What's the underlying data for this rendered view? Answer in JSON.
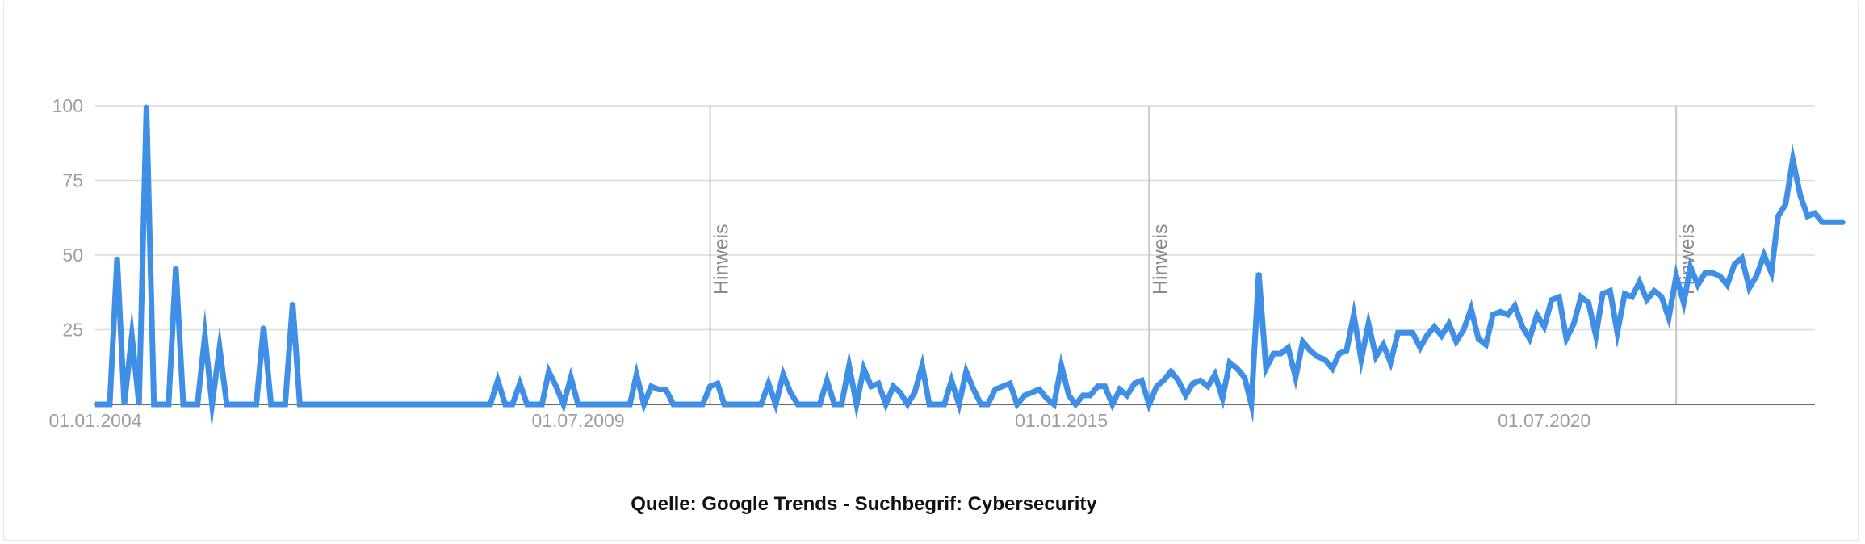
{
  "chart_data": {
    "type": "line",
    "title": "",
    "caption": "Quelle: Google Trends - Suchbegrif: Cybersecurity",
    "xlabel": "",
    "ylabel": "",
    "x_range": [
      "2004-01-01",
      "2023-08-01"
    ],
    "ylim": [
      0,
      100
    ],
    "y_ticks": [
      25,
      50,
      75,
      100
    ],
    "x_tick_labels": [
      {
        "date": "2004-01-01",
        "label": "01.01.2004"
      },
      {
        "date": "2009-07-01",
        "label": "01.07.2009"
      },
      {
        "date": "2015-01-01",
        "label": "01.01.2015"
      },
      {
        "date": "2020-07-01",
        "label": "01.07.2020"
      }
    ],
    "grid": true,
    "legend": "none",
    "annotations": [
      {
        "date": "2011-01-01",
        "label": "Hinweis"
      },
      {
        "date": "2016-01-01",
        "label": "Hinweis"
      },
      {
        "date": "2022-01-01",
        "label": "Hinweis"
      }
    ],
    "colors": {
      "line": "#3f8fe6",
      "grid": "#dadada",
      "annotation": "#c6c6c6",
      "axis": "#333333"
    },
    "series": [
      {
        "x_start": "2004-01",
        "frequency": "monthly",
        "values": [
          0,
          0,
          0,
          49,
          0,
          23,
          0,
          100,
          0,
          0,
          0,
          46,
          0,
          0,
          0,
          23,
          0,
          19,
          0,
          0,
          0,
          0,
          0,
          26,
          0,
          0,
          0,
          34,
          0,
          0,
          0,
          0,
          0,
          0,
          0,
          0,
          0,
          0,
          0,
          0,
          0,
          0,
          0,
          0,
          0,
          0,
          0,
          0,
          0,
          0,
          0,
          0,
          0,
          0,
          0,
          8,
          0,
          0,
          7,
          0,
          0,
          0,
          11,
          6,
          0,
          9,
          0,
          0,
          0,
          0,
          0,
          0,
          0,
          0,
          10,
          0,
          6,
          5,
          5,
          0,
          0,
          0,
          0,
          0,
          6,
          7,
          0,
          0,
          0,
          0,
          0,
          0,
          7,
          0,
          10,
          4,
          0,
          0,
          0,
          0,
          8,
          0,
          0,
          13,
          0,
          12,
          6,
          7,
          0,
          6,
          4,
          0,
          4,
          13,
          0,
          0,
          0,
          8,
          0,
          11,
          5,
          0,
          0,
          5,
          6,
          7,
          0,
          3,
          4,
          5,
          2,
          0,
          13,
          3,
          0,
          3,
          3,
          6,
          6,
          0,
          5,
          3,
          7,
          8,
          0,
          6,
          8,
          11,
          8,
          3,
          7,
          8,
          6,
          10,
          2,
          14,
          12,
          9,
          0,
          44,
          12,
          17,
          17,
          19,
          9,
          21,
          18,
          16,
          15,
          12,
          17,
          18,
          30,
          15,
          27,
          16,
          20,
          14,
          24,
          24,
          24,
          19,
          23,
          26,
          23,
          27,
          21,
          25,
          32,
          22,
          20,
          30,
          31,
          30,
          33,
          26,
          22,
          30,
          26,
          35,
          36,
          22,
          27,
          36,
          34,
          23,
          37,
          38,
          24,
          37,
          36,
          41,
          35,
          38,
          36,
          29,
          43,
          34,
          46,
          40,
          44,
          44,
          43,
          40,
          47,
          49,
          39,
          43,
          50,
          44,
          63,
          67,
          82,
          70,
          63,
          64,
          61,
          61,
          61,
          61
        ]
      }
    ]
  }
}
